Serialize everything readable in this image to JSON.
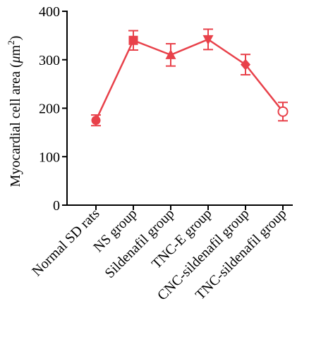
{
  "chart_data": {
    "type": "line",
    "ylabel_main": "Myocardial cell area (",
    "ylabel_unit_mu": "μ",
    "ylabel_unit_m": "m",
    "ylabel_sup": "2",
    "ylabel_close": ")",
    "ylim": [
      0,
      400
    ],
    "yticks": [
      "0",
      "100",
      "200",
      "300",
      "400"
    ],
    "ytick_values": [
      0,
      100,
      200,
      300,
      400
    ],
    "categories": [
      "Normal SD rats",
      "NS group",
      "Sildenafil group",
      "TNC-E group",
      "CNC-sildenafil group",
      "TNC-sildenafil group"
    ],
    "series": [
      {
        "values": [
          175,
          340,
          310,
          342,
          290,
          193
        ],
        "errors": [
          11,
          20,
          23,
          21,
          21,
          19
        ],
        "markers": [
          "circle",
          "square",
          "triangle-up",
          "triangle-down",
          "diamond",
          "circle-open"
        ]
      }
    ],
    "grid": false,
    "color": "#e8414a"
  }
}
